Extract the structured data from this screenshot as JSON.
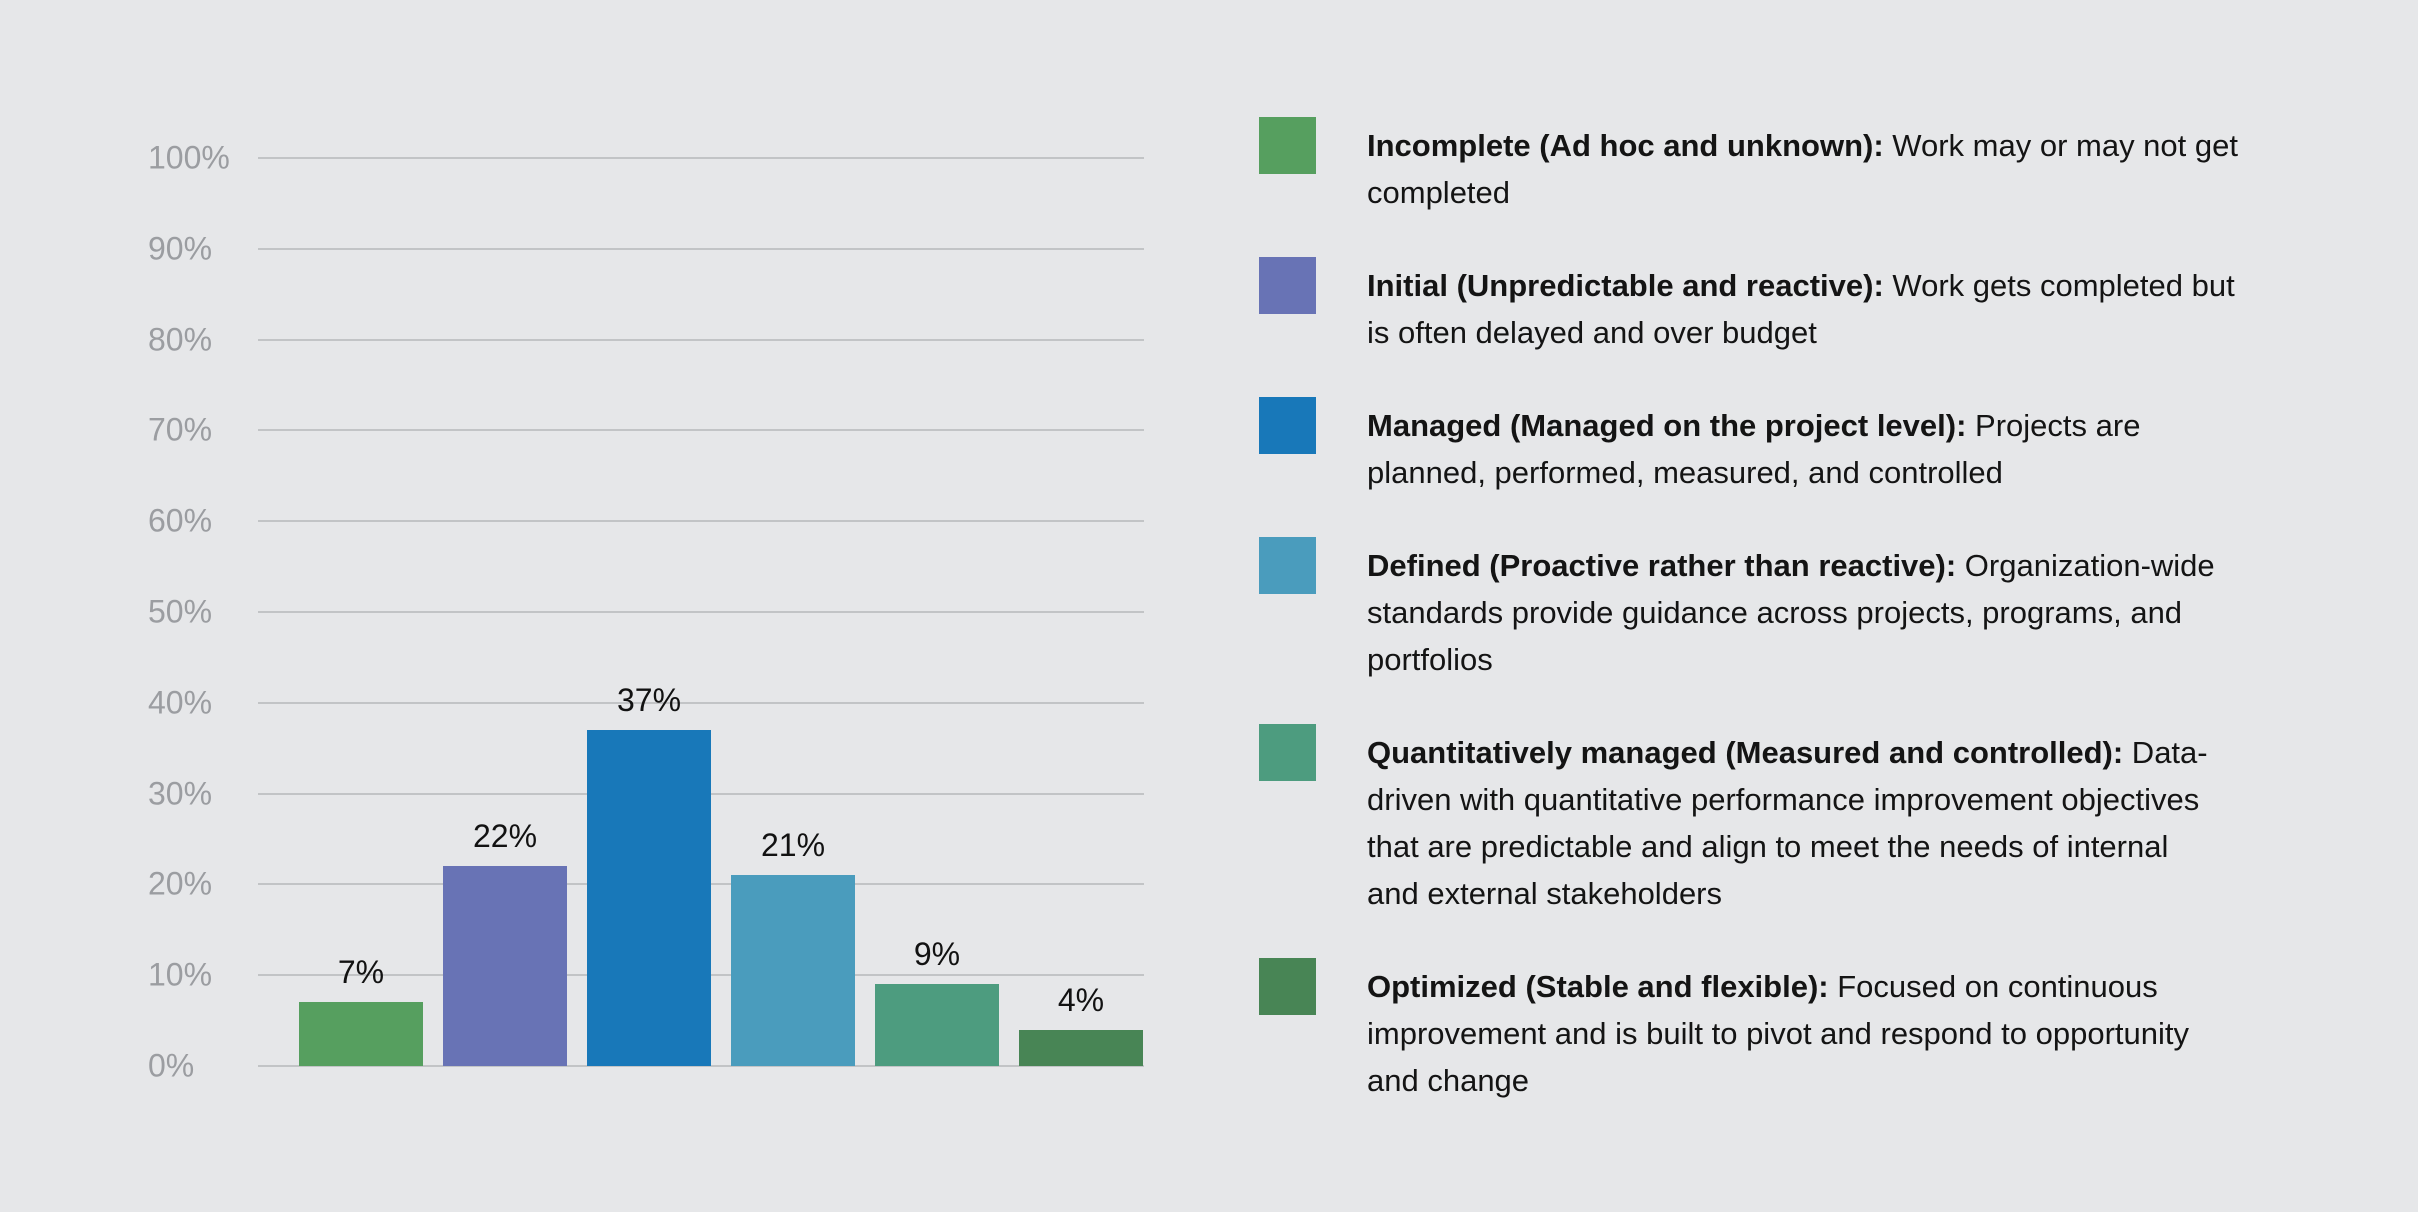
{
  "style": {
    "background": "#E6E7E9",
    "gridline_color": "#C2C4C6",
    "tick_label_color": "#9B9DA1",
    "bar_value_color": "#121212",
    "legend_text_color": "#141414"
  },
  "chart_data": {
    "type": "bar",
    "title": "",
    "xlabel": "",
    "ylabel": "",
    "categories": [
      "Incomplete (Ad hoc and unknown)",
      "Initial (Unpredictable and reactive)",
      "Managed (Managed on the project level)",
      "Defined (Proactive rather than reactive)",
      "Quantitatively managed (Measured and controlled)",
      "Optimized (Stable and flexible)"
    ],
    "values": [
      7,
      22,
      37,
      21,
      9,
      4
    ],
    "value_labels": [
      "7%",
      "22%",
      "37%",
      "21%",
      "9%",
      "4%"
    ],
    "bar_colors": [
      "#569F5F",
      "#6873B5",
      "#1878B9",
      "#4A9CBD",
      "#4D9C7F",
      "#488555"
    ],
    "y_axis": {
      "min": 0,
      "max": 100,
      "step": 10,
      "tick_labels": [
        "0%",
        "10%",
        "20%",
        "30%",
        "40%",
        "50%",
        "60%",
        "70%",
        "80%",
        "90%",
        "100%"
      ]
    },
    "grid": true,
    "legend_position": "right"
  },
  "legend": {
    "items": [
      {
        "swatch_color": "#569F5F",
        "bold": "Incomplete (Ad hoc and unknown):",
        "rest": " Work may or may not get\ncompleted"
      },
      {
        "swatch_color": "#6873B5",
        "bold": "Initial (Unpredictable and reactive):",
        "rest": " Work gets completed but\nis often delayed and over budget"
      },
      {
        "swatch_color": "#1878B9",
        "bold": "Managed (Managed on the project level):",
        "rest": " Projects are\nplanned, performed, measured, and controlled"
      },
      {
        "swatch_color": "#4A9CBD",
        "bold": "Defined (Proactive rather than reactive):",
        "rest": " Organization-wide\nstandards provide guidance across projects, programs, and\nportfolios"
      },
      {
        "swatch_color": "#4D9C7F",
        "bold": "Quantitatively managed (Measured and controlled):",
        "rest": " Data-\ndriven with quantitative performance improvement objectives\nthat are predictable and align to meet the needs of internal\nand external stakeholders"
      },
      {
        "swatch_color": "#488555",
        "bold": "Optimized (Stable and flexible):",
        "rest": " Focused on continuous\nimprovement and is built to pivot and respond to opportunity\nand change"
      }
    ]
  }
}
